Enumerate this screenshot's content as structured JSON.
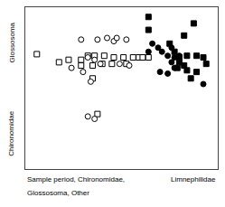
{
  "chart_data": {
    "type": "scatter",
    "xlim": [
      -1.0,
      1.0
    ],
    "ylim": [
      -1.0,
      1.0
    ],
    "tick_labels": false,
    "grid": false,
    "annotations": [
      "Glossosoma",
      "Chironomidae",
      "Sample period, Chironomidae,",
      "Glossosoma, Other",
      "Limnephilidae"
    ],
    "series": [
      {
        "marker": "square",
        "color": "black",
        "x": [
          0.28,
          0.28,
          0.5,
          0.75,
          0.65,
          0.55,
          0.6,
          0.68,
          0.6,
          0.65,
          0.68,
          0.58,
          0.78,
          0.85,
          0.88,
          0.72,
          0.78
        ],
        "values": [
          0.88,
          0.72,
          0.55,
          0.8,
          0.65,
          0.45,
          0.38,
          0.4,
          0.32,
          0.28,
          0.22,
          0.25,
          0.4,
          0.38,
          0.3,
          0.12,
          0.2
        ]
      },
      {
        "marker": "circle",
        "color": "black",
        "x": [
          0.32,
          0.28,
          0.38,
          0.42,
          0.52,
          0.48,
          0.55,
          0.52,
          0.55,
          0.6,
          0.4,
          0.48,
          0.85
        ],
        "values": [
          0.55,
          0.45,
          0.5,
          0.45,
          0.5,
          0.4,
          0.38,
          0.32,
          0.25,
          0.4,
          0.2,
          0.18,
          0.05
        ]
      },
      {
        "marker": "square-open",
        "color": "black",
        "x": [
          -0.88,
          -0.65,
          -0.55,
          -0.42,
          -0.35,
          -0.28,
          -0.18,
          -0.08,
          0.02,
          -0.42,
          -0.3,
          -0.2,
          -0.1,
          0.05,
          0.12,
          0.18,
          0.22,
          0.28,
          -0.3,
          -0.25
        ],
        "values": [
          0.42,
          0.32,
          0.35,
          0.35,
          0.4,
          0.4,
          0.4,
          0.38,
          0.38,
          0.28,
          0.28,
          0.3,
          0.3,
          0.3,
          0.38,
          0.38,
          0.38,
          0.38,
          0.12,
          -0.32
        ]
      },
      {
        "marker": "circle-open",
        "color": "black",
        "x": [
          -0.42,
          -0.25,
          -0.15,
          -0.08,
          -0.05,
          0.05,
          -0.35,
          -0.28,
          -0.22,
          -0.52,
          -0.4,
          -0.32,
          -0.35,
          -0.28,
          -0.02,
          0.08
        ],
        "values": [
          0.6,
          0.6,
          0.62,
          0.58,
          0.62,
          0.6,
          0.38,
          0.35,
          0.3,
          0.25,
          0.2,
          0.08,
          -0.35,
          -0.38,
          0.3,
          0.28
        ]
      }
    ]
  }
}
